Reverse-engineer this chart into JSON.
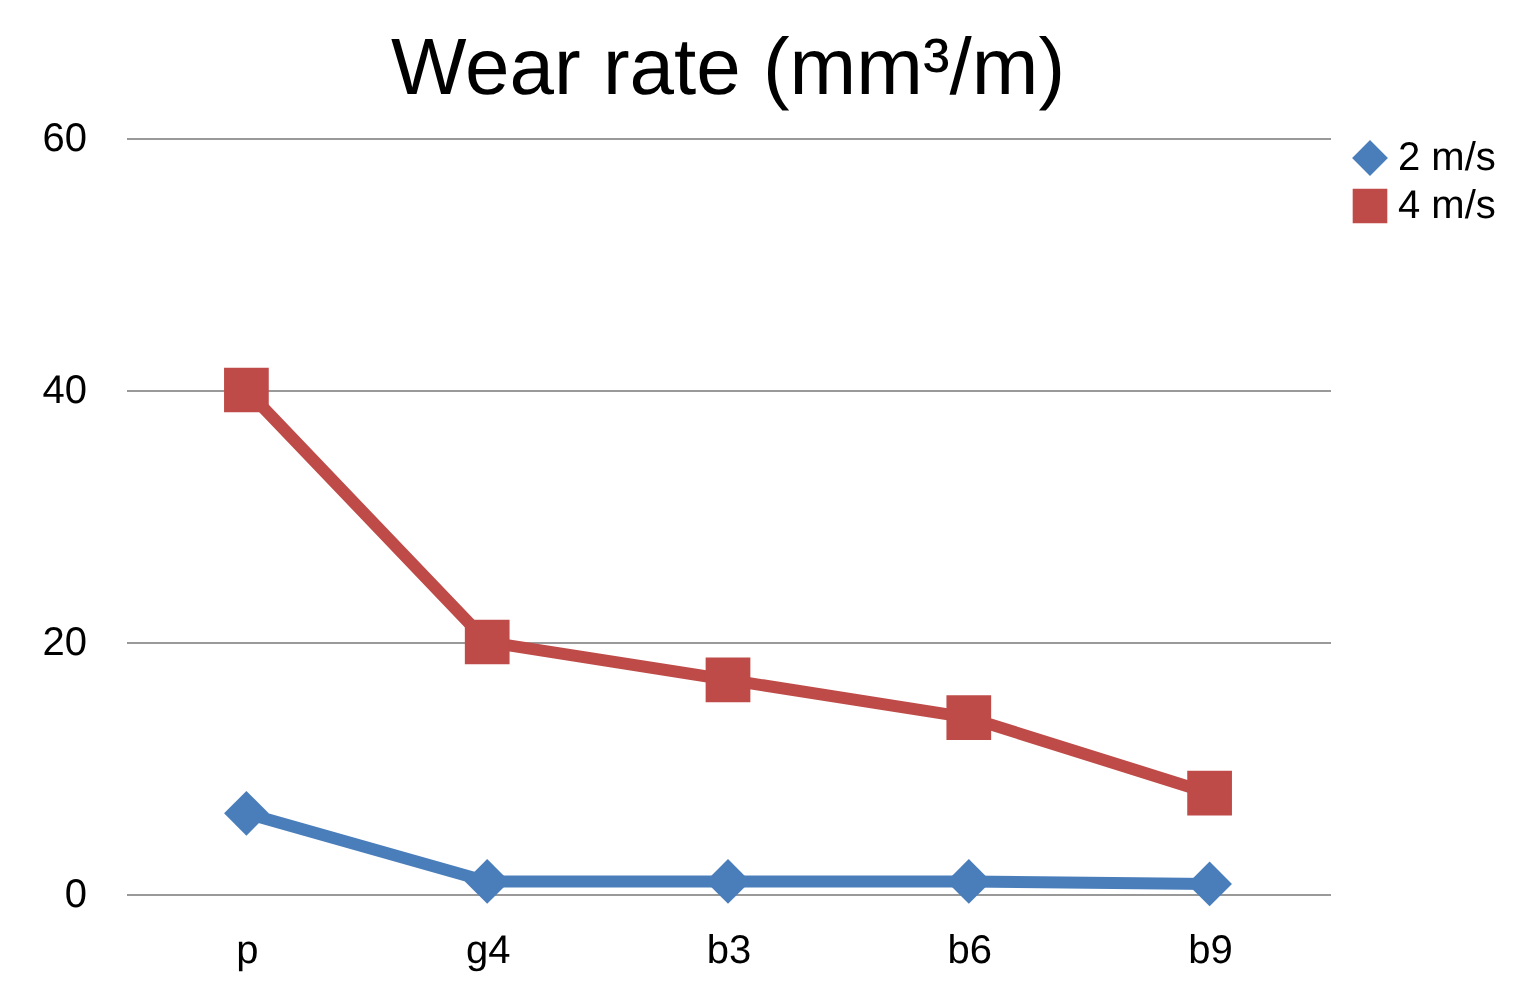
{
  "chart_data": {
    "type": "line",
    "title": "Wear rate (mm³/m)",
    "categories": [
      "p",
      "g4",
      "b3",
      "b6",
      "b9"
    ],
    "series": [
      {
        "name": "2 m/s",
        "color": "#4a7ebb",
        "marker": "diamond",
        "values": [
          6.4,
          1,
          1,
          1,
          0.8
        ]
      },
      {
        "name": "4 m/s",
        "color": "#be4b48",
        "marker": "square",
        "values": [
          40,
          20,
          17,
          14,
          8
        ]
      }
    ],
    "ylim": [
      0,
      60
    ],
    "yticks": [
      0,
      20,
      40,
      60
    ],
    "grid": "y",
    "legend": "right"
  }
}
